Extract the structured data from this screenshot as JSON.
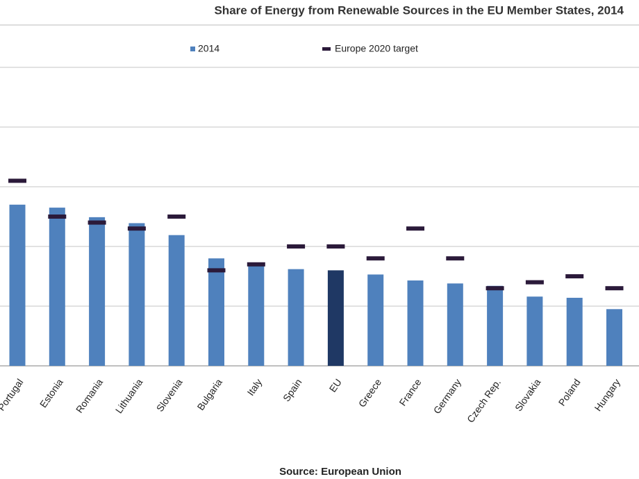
{
  "chart_data": {
    "type": "bar",
    "title": "Share of Energy from Renewable Sources in the EU Member States, 2014",
    "source": "Source: European Union",
    "categories": [
      "Portugal",
      "Estonia",
      "Romania",
      "Lithuania",
      "Slovenia",
      "Bulgaria",
      "Italy",
      "Spain",
      "EU",
      "Greece",
      "France",
      "Germany",
      "Czech Rep.",
      "Slovakia",
      "Poland",
      "Hungary"
    ],
    "series": [
      {
        "name": "2014",
        "color": "#4f81bd",
        "highlight_color": "#1f3864",
        "highlight_category": "EU",
        "values": [
          27.0,
          26.5,
          24.9,
          23.9,
          21.9,
          18.0,
          17.1,
          16.2,
          16.0,
          15.3,
          14.3,
          13.8,
          13.4,
          11.6,
          11.4,
          9.5
        ]
      },
      {
        "name": "Europe 2020 target",
        "color": "#2b1a3a",
        "marker": "dash",
        "values": [
          31,
          25,
          24,
          23,
          25,
          16,
          17,
          20,
          20,
          18,
          23,
          18,
          13,
          14,
          15,
          13
        ]
      }
    ],
    "ylim": [
      0,
      50
    ],
    "yticks": [
      0,
      10,
      20,
      30,
      40,
      50
    ],
    "grid": true
  }
}
